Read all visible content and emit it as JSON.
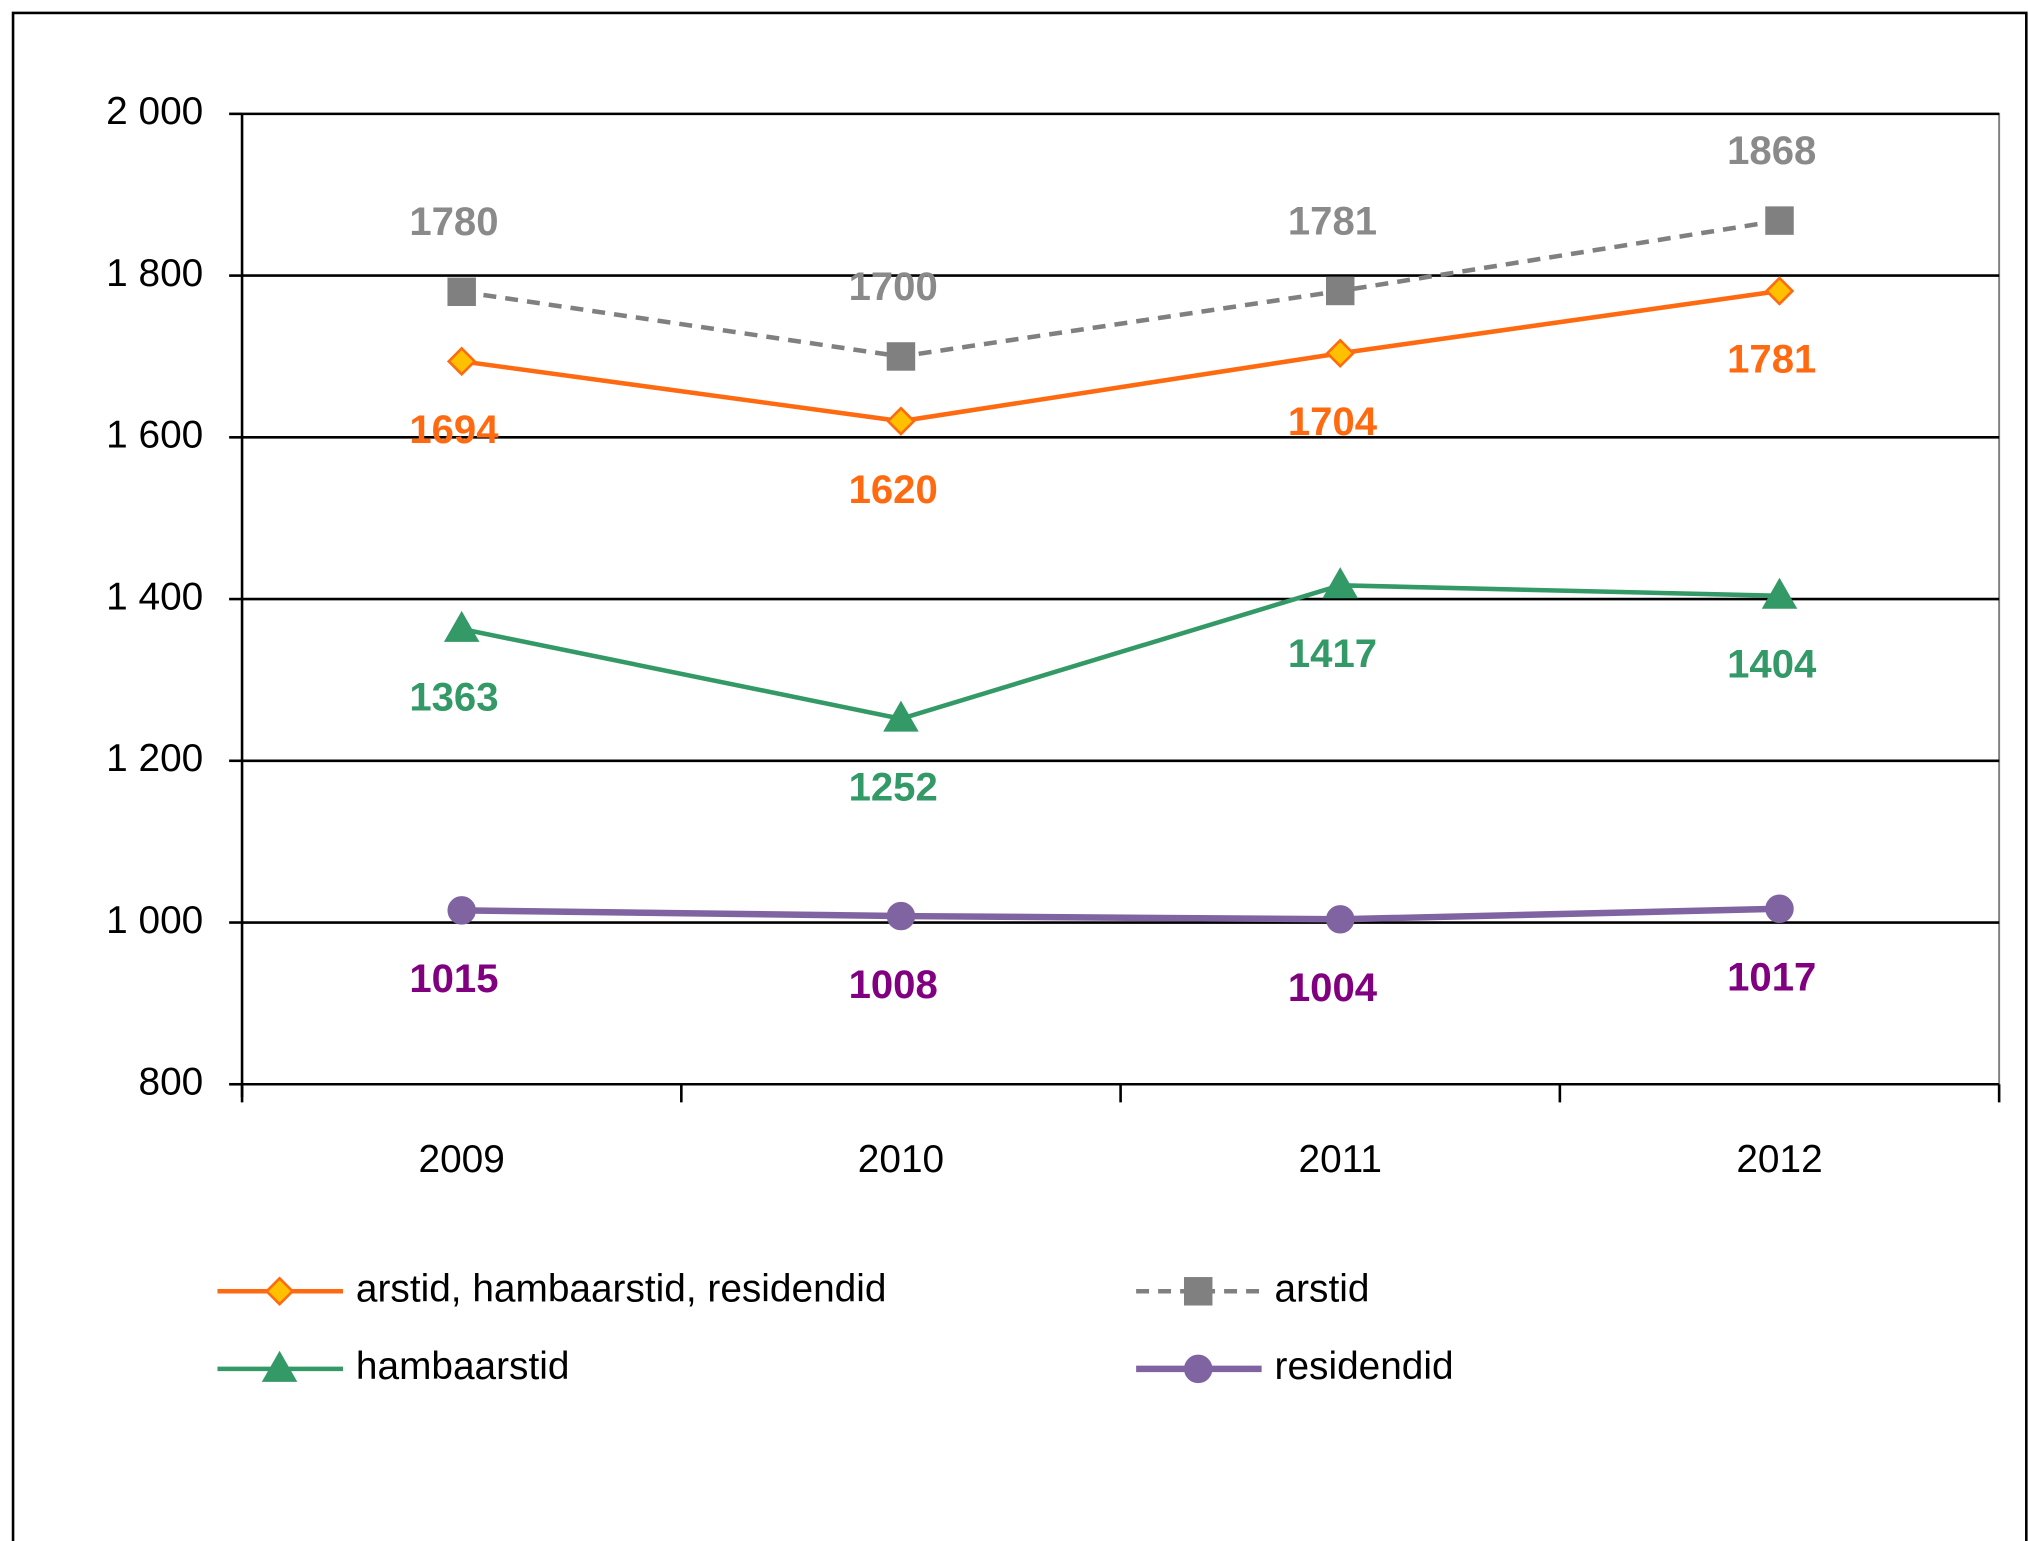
{
  "chart_data": {
    "type": "line",
    "categories": [
      "2009",
      "2010",
      "2011",
      "2012"
    ],
    "series": [
      {
        "name": "arstid, hambaarstid, residendid",
        "color": "#ff6a10",
        "label_color": "#ff6a10",
        "marker": "diamond",
        "marker_fill": "#ffc000",
        "dashed": false,
        "label_side": "below",
        "values": [
          1694,
          1620,
          1704,
          1781
        ]
      },
      {
        "name": "arstid",
        "color": "#808080",
        "label_color": "#8a8a8a",
        "marker": "square",
        "marker_fill": "#808080",
        "dashed": true,
        "label_side": "above",
        "values": [
          1780,
          1700,
          1781,
          1868
        ]
      },
      {
        "name": "hambaarstid",
        "color": "#339966",
        "label_color": "#339966",
        "marker": "triangle",
        "marker_fill": "#339966",
        "dashed": false,
        "label_side": "below",
        "values": [
          1363,
          1252,
          1417,
          1404
        ]
      },
      {
        "name": "residendid",
        "color": "#8064a2",
        "label_color": "#800080",
        "marker": "circle",
        "marker_fill": "#8064a2",
        "dashed": false,
        "label_side": "below",
        "values": [
          1015,
          1008,
          1004,
          1017
        ]
      }
    ],
    "ylim": [
      800,
      2000
    ],
    "yticks": [
      800,
      {
        "value": 1000,
        "label": "1 000"
      },
      {
        "value": 1200,
        "label": "1 200"
      },
      {
        "value": 1400,
        "label": "1 400"
      },
      {
        "value": 1600,
        "label": "1 600"
      },
      {
        "value": 1800,
        "label": "1 800"
      },
      {
        "value": 2000,
        "label": "2 000"
      }
    ],
    "grid": true,
    "legend": "bottom"
  }
}
